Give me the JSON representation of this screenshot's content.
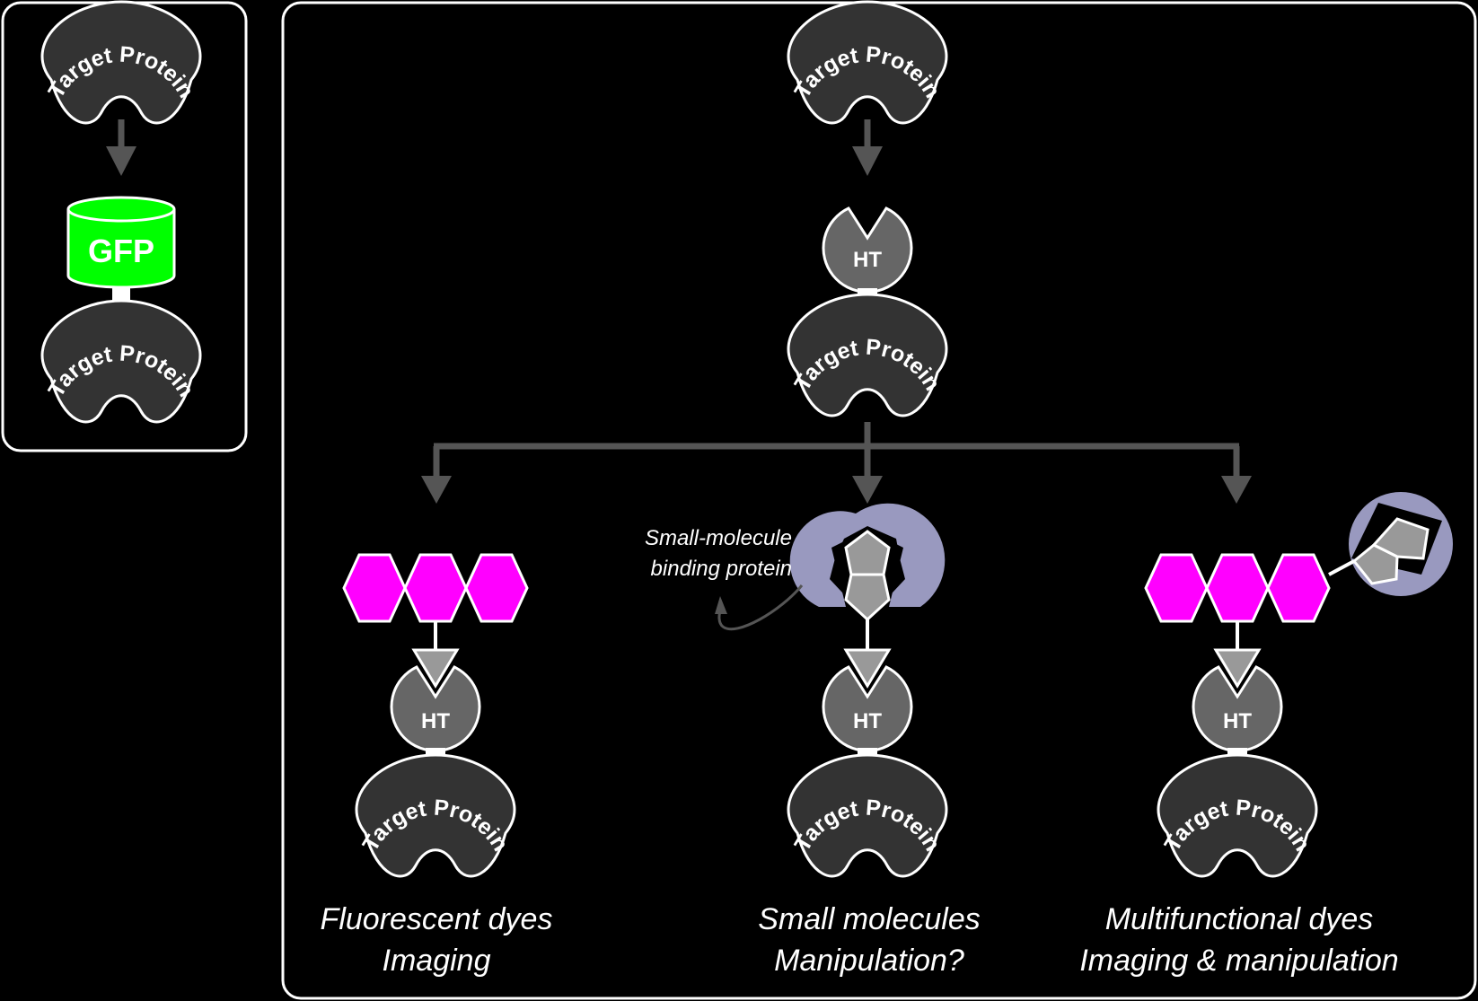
{
  "labels": {
    "target_protein": "Target Protein",
    "gfp": "GFP",
    "ht": "HT",
    "binding_note_line1": "Small-molecule",
    "binding_note_line2": "binding protein"
  },
  "branches": [
    {
      "line1": "Fluorescent dyes",
      "line2": "Imaging"
    },
    {
      "line1": "Small molecules",
      "line2": "Manipulation?"
    },
    {
      "line1": "Multifunctional dyes",
      "line2": "Imaging & manipulation"
    }
  ],
  "colors": {
    "background": "#000000",
    "protein_fill": "#333333",
    "ht_fill": "#666666",
    "ligand_fill": "#999999",
    "gfp_green": "#00ff00",
    "dye_magenta": "#ff00ff",
    "binding_protein": "#9999bf",
    "arrow_gray": "#555555",
    "outline": "#ffffff"
  }
}
